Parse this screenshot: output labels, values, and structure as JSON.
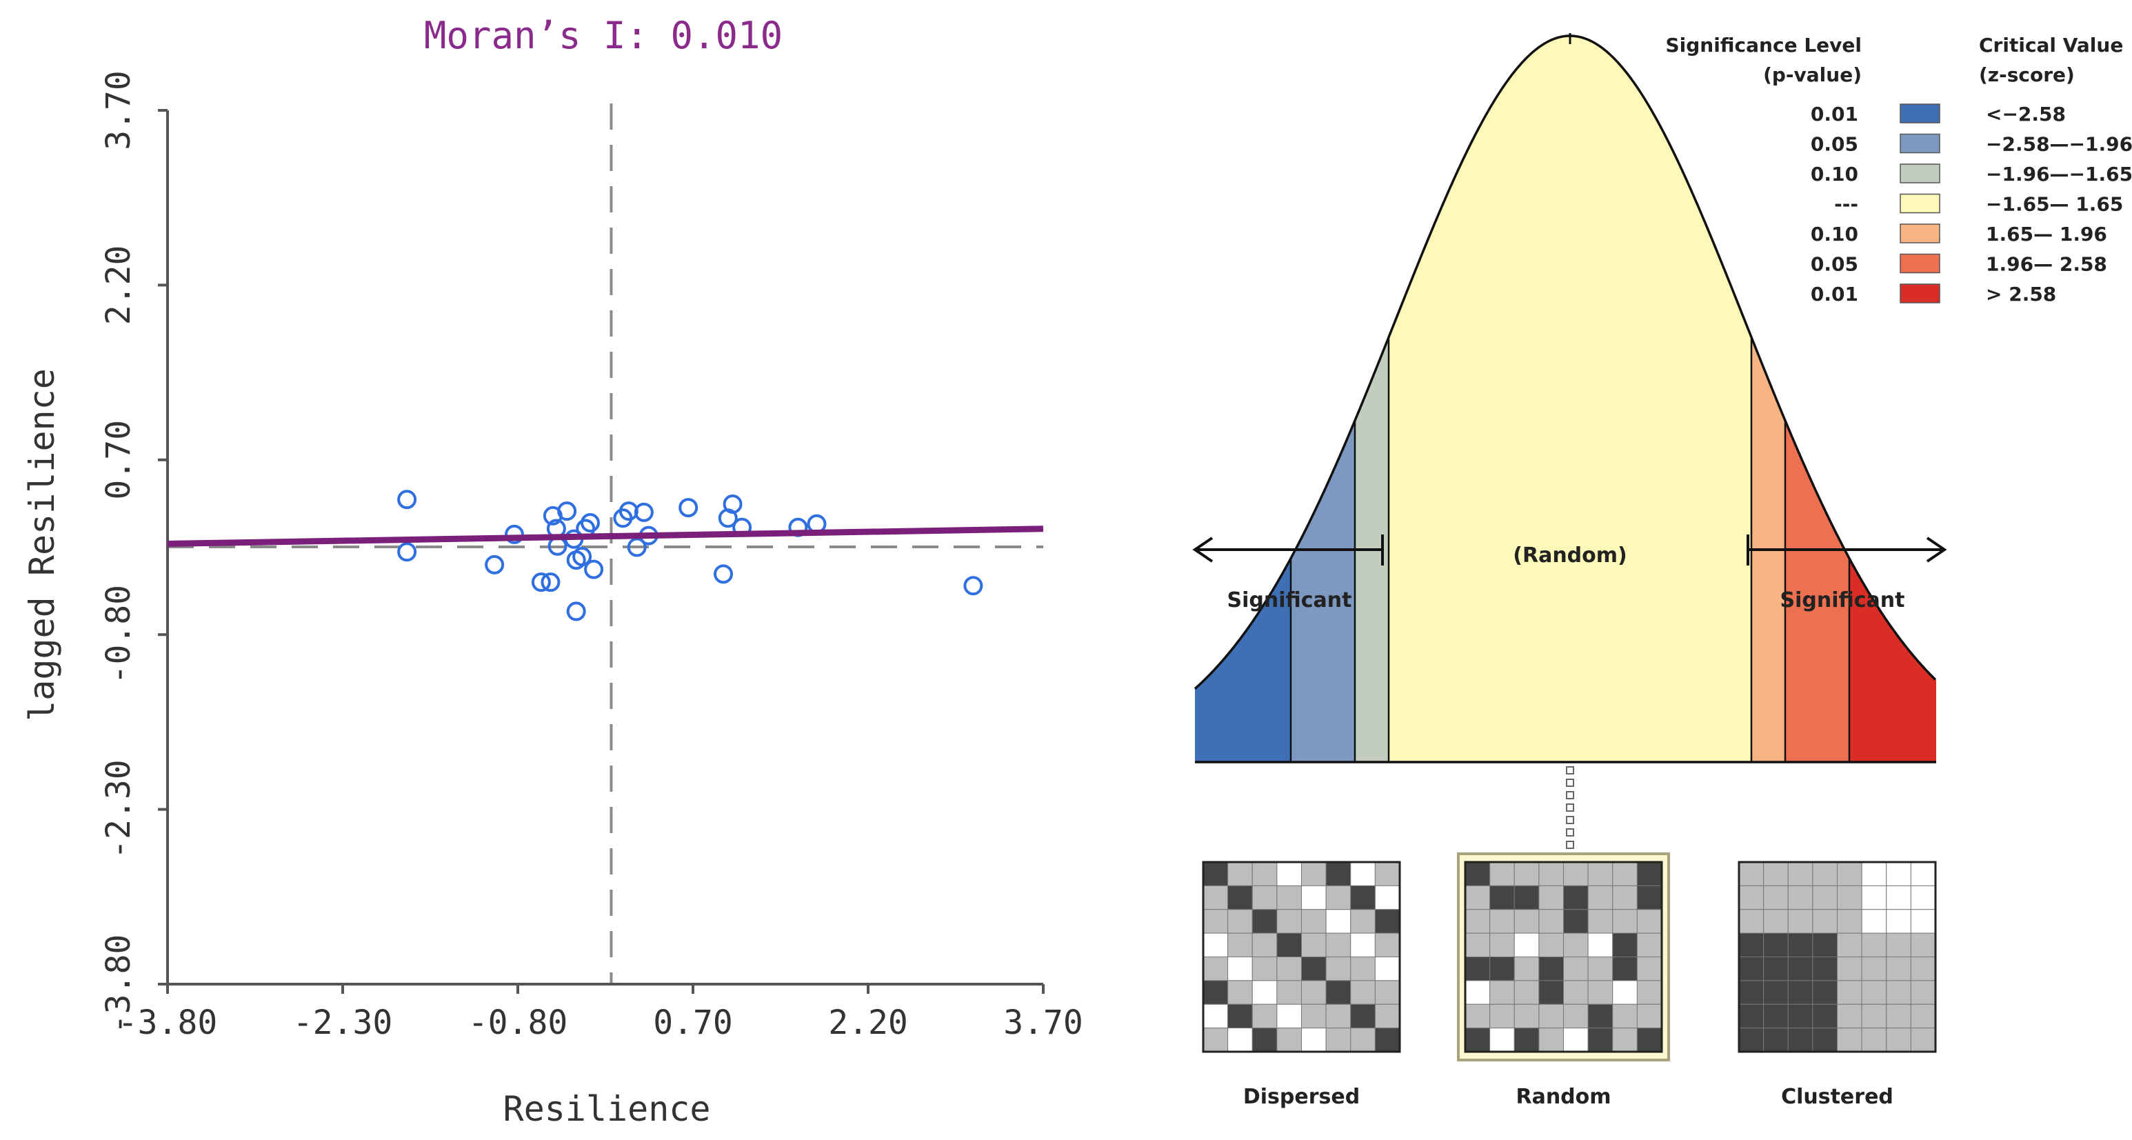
{
  "scatter": {
    "title": "Moran’s I: 0.010",
    "title_color": "#8a2a8a",
    "point_color": "#2f6fe0",
    "fit_line_color": "#7a1f7a",
    "chart_data": {
      "type": "scatter",
      "title": "Moran’s I: 0.010",
      "xlabel": "Resilience",
      "ylabel": "lagged Resilience",
      "xlim": [
        -3.8,
        3.7
      ],
      "ylim": [
        -3.8,
        3.7
      ],
      "xticks": [
        -3.8,
        -2.3,
        -0.8,
        0.7,
        2.2,
        3.7
      ],
      "yticks": [
        -3.8,
        -2.3,
        -0.8,
        0.7,
        2.2,
        3.7
      ],
      "xtick_labels": [
        "-3.80",
        "-2.30",
        "-0.80",
        "0.70",
        "2.20",
        "3.70"
      ],
      "ytick_labels": [
        "-3.80",
        "-2.30",
        "-0.80",
        "0.70",
        "2.20",
        "3.70"
      ],
      "reference_lines": {
        "x_mean": 0.0,
        "y_mean": 0.0
      },
      "fit_line": {
        "slope": 0.01,
        "intercept": 0.0
      },
      "points": [
        {
          "x": -1.75,
          "y": 0.36
        },
        {
          "x": -1.75,
          "y": -0.09
        },
        {
          "x": -1.0,
          "y": -0.2
        },
        {
          "x": -0.83,
          "y": 0.06
        },
        {
          "x": -0.6,
          "y": -0.35
        },
        {
          "x": -0.52,
          "y": -0.35
        },
        {
          "x": -0.5,
          "y": 0.22
        },
        {
          "x": -0.47,
          "y": 0.11
        },
        {
          "x": -0.46,
          "y": -0.04
        },
        {
          "x": -0.38,
          "y": 0.26
        },
        {
          "x": -0.32,
          "y": 0.02
        },
        {
          "x": -0.3,
          "y": -0.6
        },
        {
          "x": -0.3,
          "y": -0.16
        },
        {
          "x": -0.25,
          "y": -0.13
        },
        {
          "x": -0.22,
          "y": 0.11
        },
        {
          "x": -0.18,
          "y": 0.16
        },
        {
          "x": -0.15,
          "y": -0.24
        },
        {
          "x": 0.1,
          "y": 0.2
        },
        {
          "x": 0.15,
          "y": 0.26
        },
        {
          "x": 0.22,
          "y": -0.05
        },
        {
          "x": 0.28,
          "y": 0.25
        },
        {
          "x": 0.32,
          "y": 0.05
        },
        {
          "x": 0.66,
          "y": 0.29
        },
        {
          "x": 0.96,
          "y": -0.28
        },
        {
          "x": 1.0,
          "y": 0.2
        },
        {
          "x": 1.04,
          "y": 0.32
        },
        {
          "x": 1.12,
          "y": 0.12
        },
        {
          "x": 1.6,
          "y": 0.12
        },
        {
          "x": 1.76,
          "y": 0.15
        },
        {
          "x": 3.1,
          "y": -0.38
        }
      ]
    }
  },
  "normal": {
    "random_label": "(Random)",
    "significant_left": "Significant",
    "significant_right": "Significant",
    "legend": {
      "header_left_1": "Significance Level",
      "header_left_2": "(p-value)",
      "header_right_1": "Critical Value",
      "header_right_2": "(z-score)",
      "rows": [
        {
          "p": "0.01",
          "z": "<−2.58",
          "color": "#3f6fb5"
        },
        {
          "p": "0.05",
          "z": "−2.58—−1.96",
          "color": "#7d99c2"
        },
        {
          "p": "0.10",
          "z": "−1.96—−1.65",
          "color": "#c3cdbd"
        },
        {
          "p": "---",
          "z": "−1.65— 1.65",
          "color": "#fdf9b9"
        },
        {
          "p": "0.10",
          "z": "1.65— 1.96",
          "color": "#f9b484"
        },
        {
          "p": "0.05",
          "z": "1.96— 2.58",
          "color": "#ed7050"
        },
        {
          "p": "0.01",
          "z": "> 2.58",
          "color": "#d92d26"
        }
      ]
    },
    "maps": [
      {
        "label": "Dispersed"
      },
      {
        "label": "Random"
      },
      {
        "label": "Clustered"
      }
    ]
  }
}
